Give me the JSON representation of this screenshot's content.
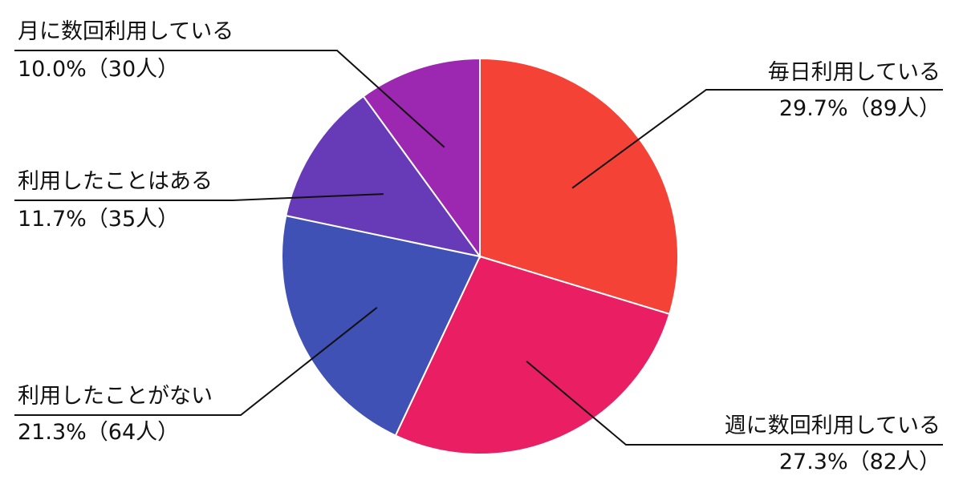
{
  "chart_data": {
    "type": "pie",
    "start_angle_deg": 0,
    "direction": "clockwise",
    "slices": [
      {
        "label": "毎日利用している",
        "value": 29.7,
        "count": 89,
        "value_label": "29.7%（89人）",
        "color": "#F44336"
      },
      {
        "label": "週に数回利用している",
        "value": 27.3,
        "count": 82,
        "value_label": "27.3%（82人）",
        "color": "#E91E63"
      },
      {
        "label": "利用したことがない",
        "value": 21.3,
        "count": 64,
        "value_label": "21.3%（64人）",
        "color": "#3F51B5"
      },
      {
        "label": "利用したことはある",
        "value": 11.7,
        "count": 35,
        "value_label": "11.7%（35人）",
        "color": "#673AB7"
      },
      {
        "label": "月に数回利用している",
        "value": 10.0,
        "count": 30,
        "value_label": "10.0%（30人）",
        "color": "#9C27B0"
      }
    ]
  }
}
